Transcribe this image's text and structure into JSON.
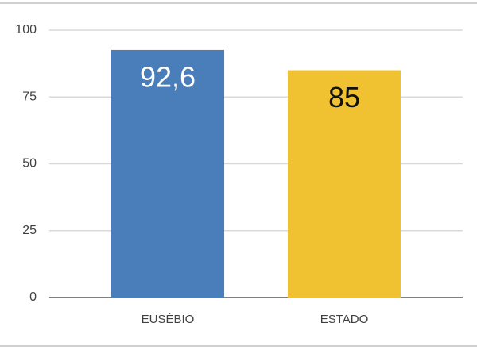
{
  "chart_data": {
    "type": "bar",
    "categories": [
      "EUSÉBIO",
      "ESTADO"
    ],
    "values": [
      92.6,
      85
    ],
    "value_labels": [
      "92,6",
      "85"
    ],
    "colors": [
      "#4a7ebb",
      "#f0c232"
    ],
    "ylim": [
      0,
      100
    ],
    "yticks": [
      0,
      25,
      50,
      75,
      100
    ],
    "grid": true
  }
}
